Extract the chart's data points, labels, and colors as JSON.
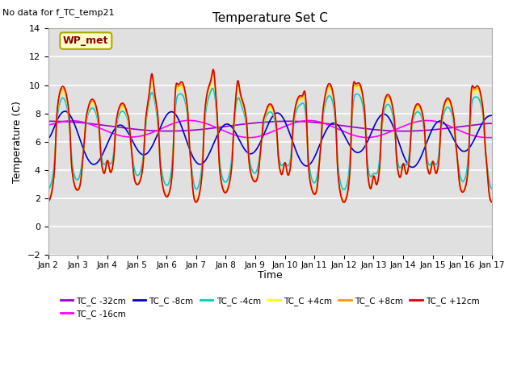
{
  "title": "Temperature Set C",
  "subtitle": "No data for f_TC_temp21",
  "xlabel": "Time",
  "ylabel": "Temperature (C)",
  "ylim": [
    -2,
    14
  ],
  "xlim": [
    0,
    15
  ],
  "x_tick_labels": [
    "Jan 2",
    "Jan 3",
    "Jan 4",
    "Jan 5",
    "Jan 6",
    "Jan 7",
    "Jan 8",
    "Jan 9",
    "Jan 10",
    "Jan 11",
    "Jan 12",
    "Jan 13",
    "Jan 14",
    "Jan 15",
    "Jan 16",
    "Jan 17"
  ],
  "wp_met_label": "WP_met",
  "bg_color": "#e0e0e0",
  "series": {
    "TC_C -32cm": {
      "color": "#9900cc",
      "lw": 1.2
    },
    "TC_C -16cm": {
      "color": "#ff00ff",
      "lw": 1.2
    },
    "TC_C -8cm": {
      "color": "#0000cc",
      "lw": 1.2
    },
    "TC_C -4cm": {
      "color": "#00cccc",
      "lw": 1.2
    },
    "TC_C +4cm": {
      "color": "#ffff00",
      "lw": 1.2
    },
    "TC_C +8cm": {
      "color": "#ff9900",
      "lw": 1.2
    },
    "TC_C +12cm": {
      "color": "#dd0000",
      "lw": 1.2
    }
  }
}
